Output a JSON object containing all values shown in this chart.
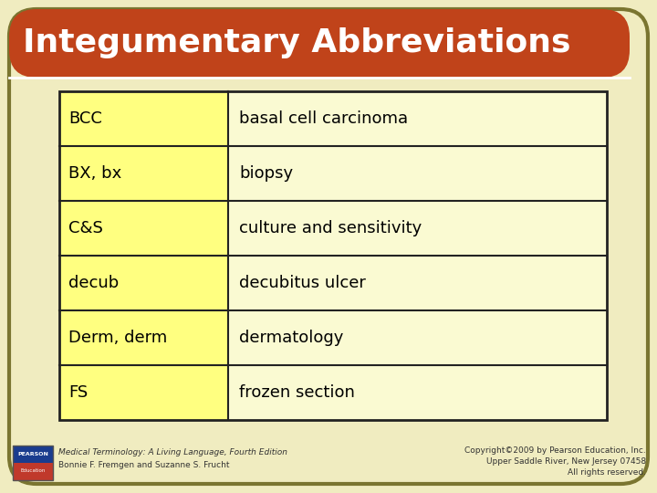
{
  "title": "Integumentary Abbreviations",
  "title_color": "#FFFFFF",
  "title_bg_color": "#C0431A",
  "background_color": "#F0ECC0",
  "table_rows": [
    [
      "BCC",
      "basal cell carcinoma"
    ],
    [
      "BX, bx",
      "biopsy"
    ],
    [
      "C&S",
      "culture and sensitivity"
    ],
    [
      "decub",
      "decubitus ulcer"
    ],
    [
      "Derm, derm",
      "dermatology"
    ],
    [
      "FS",
      "frozen section"
    ]
  ],
  "col1_bg": "#FFFF80",
  "col2_bg": "#FAFAD2",
  "border_color": "#222222",
  "text_color": "#000000",
  "cell_text_fontsize": 13,
  "title_fontsize": 26,
  "footer_left_line1": "Medical Terminology: A Living Language, Fourth Edition",
  "footer_left_line2": "Bonnie F. Fremgen and Suzanne S. Frucht",
  "footer_right_line1": "Copyright©2009 by Pearson Education, Inc.",
  "footer_right_line2": "Upper Saddle River, New Jersey 07458",
  "footer_right_line3": "All rights reserved.",
  "outer_border_color": "#7A7530",
  "pearson_top_color": "#1a3c8e",
  "pearson_bottom_color": "#c0392b"
}
